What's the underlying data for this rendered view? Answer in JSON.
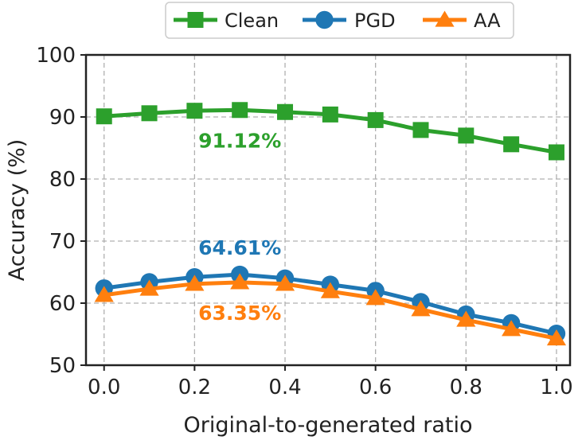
{
  "chart_data": {
    "type": "line",
    "title": "",
    "xlabel": "Original-to-generated ratio",
    "ylabel": "Accuracy (%)",
    "x": [
      0.0,
      0.1,
      0.2,
      0.3,
      0.4,
      0.5,
      0.6,
      0.7,
      0.8,
      0.9,
      1.0
    ],
    "xlim": [
      -0.04,
      1.03
    ],
    "ylim": [
      50,
      100
    ],
    "xticks": [
      0.0,
      0.2,
      0.4,
      0.6,
      0.8,
      1.0
    ],
    "xtick_labels": [
      "0.0",
      "0.2",
      "0.4",
      "0.6",
      "0.8",
      "1.0"
    ],
    "yticks": [
      50,
      60,
      70,
      80,
      90,
      100
    ],
    "ytick_labels": [
      "50",
      "60",
      "70",
      "80",
      "90",
      "100"
    ],
    "grid": true,
    "legend_position": "top-center, above plot",
    "series": [
      {
        "name": "Clean",
        "marker": "square",
        "color": "#2ca02c",
        "values": [
          90.1,
          90.6,
          91.0,
          91.12,
          90.8,
          90.4,
          89.5,
          87.9,
          87.0,
          85.6,
          84.3
        ]
      },
      {
        "name": "PGD",
        "marker": "circle",
        "color": "#1f77b4",
        "values": [
          62.4,
          63.4,
          64.2,
          64.61,
          64.0,
          63.0,
          62.0,
          60.2,
          58.2,
          56.8,
          55.1
        ]
      },
      {
        "name": "AA",
        "marker": "triangle",
        "color": "#ff7f0e",
        "values": [
          61.3,
          62.3,
          63.1,
          63.35,
          63.1,
          61.9,
          60.8,
          59.0,
          57.3,
          55.8,
          54.3
        ]
      }
    ],
    "annotations": [
      {
        "text": "91.12%",
        "x": 0.3,
        "y": 91.12,
        "color": "#2ca02c",
        "placement": "below"
      },
      {
        "text": "64.61%",
        "x": 0.3,
        "y": 64.61,
        "color": "#1f77b4",
        "placement": "above"
      },
      {
        "text": "63.35%",
        "x": 0.3,
        "y": 63.35,
        "color": "#ff7f0e",
        "placement": "below"
      }
    ]
  }
}
